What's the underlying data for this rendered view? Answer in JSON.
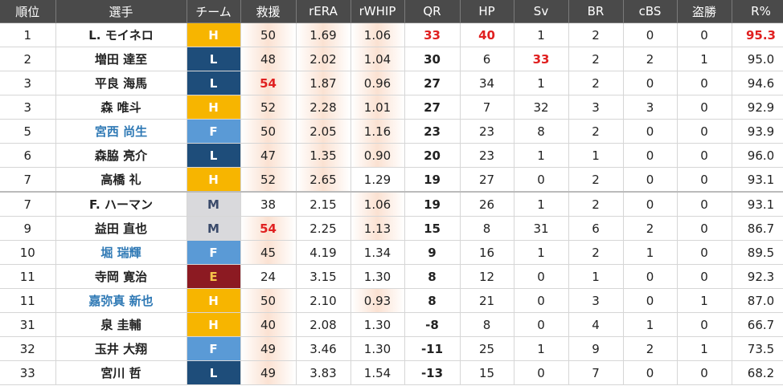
{
  "headers": [
    "順位",
    "選手",
    "チーム",
    "救援",
    "rERA",
    "rWHIP",
    "QR",
    "HP",
    "Sv",
    "BR",
    "cBS",
    "盗勝",
    "R%"
  ],
  "team_colors": {
    "H": "#f7b500",
    "L": "#1e4d7a",
    "F": "#5a9ad6",
    "M": "#d9d9dc",
    "E": "#8c1a22"
  },
  "team_text_colors": {
    "H": "#ffffff",
    "L": "#ffffff",
    "F": "#ffffff",
    "M": "#3a4a6a",
    "E": "#f6c44a"
  },
  "rows": [
    {
      "rank": "1",
      "name": "L. モイネロ",
      "team": "H",
      "app": "50",
      "rera": "1.69",
      "rwhip": "1.06",
      "qr": "33",
      "hp": "40",
      "sv": "1",
      "br": "2",
      "cbs": "0",
      "sb": "0",
      "rp": "95.3"
    },
    {
      "rank": "2",
      "name": "増田 達至",
      "team": "L",
      "app": "48",
      "rera": "2.02",
      "rwhip": "1.04",
      "qr": "30",
      "hp": "6",
      "sv": "33",
      "br": "2",
      "cbs": "2",
      "sb": "1",
      "rp": "95.0"
    },
    {
      "rank": "3",
      "name": "平良 海馬",
      "team": "L",
      "app": "54",
      "rera": "1.87",
      "rwhip": "0.96",
      "qr": "27",
      "hp": "34",
      "sv": "1",
      "br": "2",
      "cbs": "0",
      "sb": "0",
      "rp": "94.6"
    },
    {
      "rank": "3",
      "name": "森 唯斗",
      "team": "H",
      "app": "52",
      "rera": "2.28",
      "rwhip": "1.01",
      "qr": "27",
      "hp": "7",
      "sv": "32",
      "br": "3",
      "cbs": "3",
      "sb": "0",
      "rp": "92.9"
    },
    {
      "rank": "5",
      "name": "宮西 尚生",
      "team": "F",
      "app": "50",
      "rera": "2.05",
      "rwhip": "1.16",
      "qr": "23",
      "hp": "23",
      "sv": "8",
      "br": "2",
      "cbs": "0",
      "sb": "0",
      "rp": "93.9"
    },
    {
      "rank": "6",
      "name": "森脇 亮介",
      "team": "L",
      "app": "47",
      "rera": "1.35",
      "rwhip": "0.90",
      "qr": "20",
      "hp": "23",
      "sv": "1",
      "br": "1",
      "cbs": "0",
      "sb": "0",
      "rp": "96.0"
    },
    {
      "rank": "7",
      "name": "高橋 礼",
      "team": "H",
      "app": "52",
      "rera": "2.65",
      "rwhip": "1.29",
      "qr": "19",
      "hp": "27",
      "sv": "0",
      "br": "2",
      "cbs": "0",
      "sb": "0",
      "rp": "93.1"
    },
    {
      "rank": "7",
      "name": "F. ハーマン",
      "team": "M",
      "app": "38",
      "rera": "2.15",
      "rwhip": "1.06",
      "qr": "19",
      "hp": "26",
      "sv": "1",
      "br": "2",
      "cbs": "0",
      "sb": "0",
      "rp": "93.1"
    },
    {
      "rank": "9",
      "name": "益田 直也",
      "team": "M",
      "app": "54",
      "rera": "2.25",
      "rwhip": "1.13",
      "qr": "15",
      "hp": "8",
      "sv": "31",
      "br": "6",
      "cbs": "2",
      "sb": "0",
      "rp": "86.7"
    },
    {
      "rank": "10",
      "name": "堀 瑞輝",
      "team": "F",
      "app": "45",
      "rera": "4.19",
      "rwhip": "1.34",
      "qr": "9",
      "hp": "16",
      "sv": "1",
      "br": "2",
      "cbs": "1",
      "sb": "0",
      "rp": "89.5"
    },
    {
      "rank": "11",
      "name": "寺岡 寛治",
      "team": "E",
      "app": "24",
      "rera": "3.15",
      "rwhip": "1.30",
      "qr": "8",
      "hp": "12",
      "sv": "0",
      "br": "1",
      "cbs": "0",
      "sb": "0",
      "rp": "92.3"
    },
    {
      "rank": "11",
      "name": "嘉弥真 新也",
      "team": "H",
      "app": "50",
      "rera": "2.10",
      "rwhip": "0.93",
      "qr": "8",
      "hp": "21",
      "sv": "0",
      "br": "3",
      "cbs": "0",
      "sb": "1",
      "rp": "87.0"
    },
    {
      "rank": "31",
      "name": "泉 圭輔",
      "team": "H",
      "app": "40",
      "rera": "2.08",
      "rwhip": "1.30",
      "qr": "-8",
      "hp": "8",
      "sv": "0",
      "br": "4",
      "cbs": "1",
      "sb": "0",
      "rp": "66.7"
    },
    {
      "rank": "32",
      "name": "玉井 大翔",
      "team": "F",
      "app": "49",
      "rera": "3.46",
      "rwhip": "1.30",
      "qr": "-11",
      "hp": "25",
      "sv": "1",
      "br": "9",
      "cbs": "2",
      "sb": "1",
      "rp": "73.5"
    },
    {
      "rank": "33",
      "name": "宮川 哲",
      "team": "L",
      "app": "49",
      "rera": "3.83",
      "rwhip": "1.54",
      "qr": "-13",
      "hp": "15",
      "sv": "0",
      "br": "7",
      "cbs": "0",
      "sb": "0",
      "rp": "68.2"
    }
  ]
}
